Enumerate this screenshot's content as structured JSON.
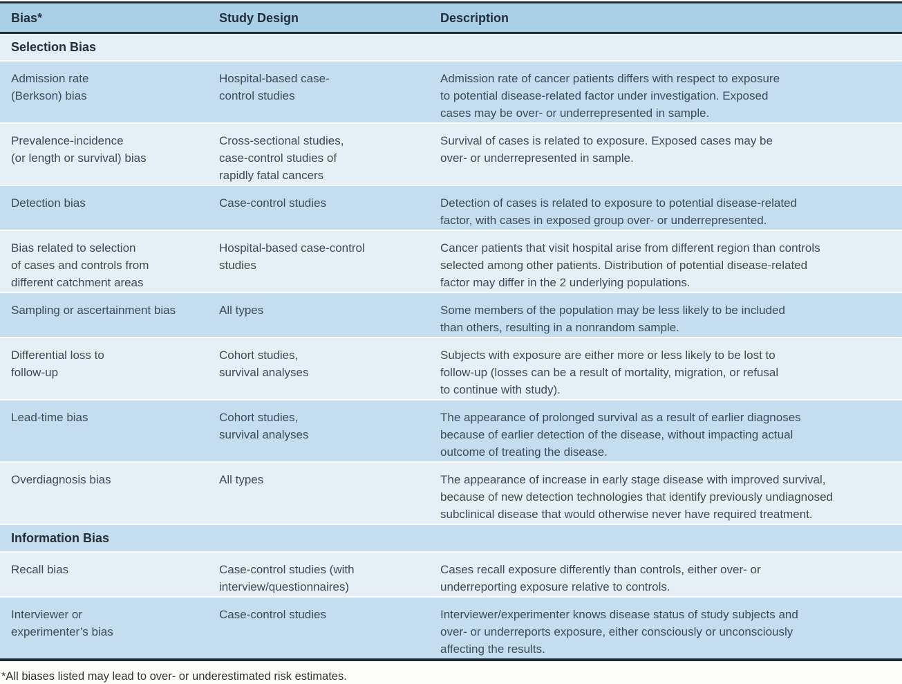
{
  "table": {
    "columns": [
      "Bias*",
      "Study Design",
      "Description"
    ],
    "footnote": "*All biases listed may lead to over- or underestimated risk estimates.",
    "sections": [
      {
        "title": "Selection Bias",
        "rows": [
          {
            "bias": "Admission rate\n(Berkson) bias",
            "design": "Hospital-based case-\ncontrol studies",
            "description": "Admission rate of cancer patients differs with respect to exposure\nto potential disease-related factor under investigation. Exposed\ncases may be over- or underrepresented in sample."
          },
          {
            "bias": "Prevalence-incidence\n(or length or survival) bias",
            "design": "Cross-sectional studies,\ncase-control studies of\nrapidly fatal cancers",
            "description": "Survival of cases is related to exposure. Exposed cases may be\nover- or underrepresented in sample."
          },
          {
            "bias": "Detection bias",
            "design": "Case-control studies",
            "description": "Detection of cases is related to exposure to potential disease-related\nfactor, with cases in exposed group over- or underrepresented."
          },
          {
            "bias": "Bias related to selection\nof cases and controls from\ndifferent catchment areas",
            "design": "Hospital-based case-control\nstudies",
            "description": "Cancer patients that visit hospital arise from different region than controls\nselected among other patients. Distribution of potential disease-related\nfactor may differ in the 2 underlying populations."
          },
          {
            "bias": "Sampling or ascertainment bias",
            "design": "All types",
            "description": "Some members of the population may be less likely to be included\nthan others, resulting in a nonrandom sample."
          },
          {
            "bias": "Differential loss to\nfollow-up",
            "design": "Cohort studies,\nsurvival analyses",
            "description": "Subjects with exposure are either more or less likely to be lost to\nfollow-up (losses can be a result of mortality, migration, or refusal\nto continue with study)."
          },
          {
            "bias": "Lead-time bias",
            "design": "Cohort studies,\nsurvival analyses",
            "description": "The appearance of prolonged survival as a result of earlier diagnoses\nbecause of earlier detection of the disease, without impacting actual\noutcome of treating the disease."
          },
          {
            "bias": "Overdiagnosis bias",
            "design": "All types",
            "description": "The appearance of increase in early stage disease with improved survival,\nbecause of new detection technologies that identify previously undiagnosed\nsubclinical disease that would otherwise never have required treatment."
          }
        ]
      },
      {
        "title": "Information Bias",
        "rows": [
          {
            "bias": "Recall bias",
            "design": "Case-control studies (with\ninterview/questionnaires)",
            "description": "Cases recall exposure differently than controls, either over- or\nunderreporting exposure relative to controls."
          },
          {
            "bias": "Interviewer or\nexperimenter’s bias",
            "design": "Case-control studies",
            "description": "Interviewer/experimenter knows disease status of study subjects and\nover- or underreports exposure, either consciously or unconsciously\naffecting the results."
          }
        ]
      }
    ]
  },
  "colors": {
    "header_bg": "#aad0e8",
    "row_medium": "#c5deef",
    "row_light": "#e4eff6",
    "rule": "#1d2b37",
    "body_text": "#3d4a57",
    "heading_text": "#222f3b"
  }
}
